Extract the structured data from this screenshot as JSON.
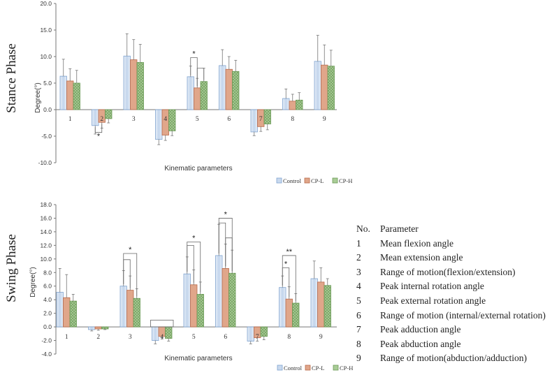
{
  "colors": {
    "control": "#c9d9ee",
    "control_stroke": "#7fa3cf",
    "cpl": "#e0a68a",
    "cpl_stroke": "#b9694a",
    "cph": "#a9cc97",
    "cph_stroke": "#6a9a55"
  },
  "chart_data": [
    {
      "type": "bar",
      "title": "Stance Phase",
      "xlabel": "Kinematic parameters",
      "ylabel": "Degree(°)",
      "ylim": [
        -10,
        20
      ],
      "yticks": [
        "-10.0",
        "-5.0",
        "0.0",
        "5.0",
        "10.0",
        "15.0",
        "20.0"
      ],
      "categories": [
        "1",
        "2",
        "3",
        "4",
        "5",
        "6",
        "7",
        "8",
        "9"
      ],
      "series": [
        {
          "name": "Control",
          "values": [
            6.3,
            -3.0,
            10.1,
            -5.6,
            6.2,
            8.3,
            -4.2,
            2.1,
            9.1
          ],
          "errors": [
            3.2,
            1.6,
            4.2,
            1.0,
            2.0,
            3.0,
            0.7,
            1.8,
            4.9
          ]
        },
        {
          "name": "CP-L",
          "values": [
            5.4,
            -2.4,
            9.4,
            -4.8,
            4.1,
            7.6,
            -3.2,
            1.6,
            8.4
          ],
          "errors": [
            2.3,
            1.1,
            3.8,
            1.0,
            1.8,
            2.4,
            0.9,
            1.3,
            3.8
          ]
        },
        {
          "name": "CP-H",
          "values": [
            5.0,
            -1.7,
            8.9,
            -4.0,
            5.3,
            7.2,
            -2.7,
            1.8,
            8.2
          ],
          "errors": [
            2.4,
            0.8,
            3.4,
            0.9,
            2.5,
            2.1,
            1.1,
            1.4,
            3.0
          ]
        }
      ],
      "annotations": [
        "*",
        "*"
      ],
      "legend": "bottom-right"
    },
    {
      "type": "bar",
      "title": "Swing Phase",
      "xlabel": "Kinematic parameters",
      "ylabel": "Degree(°)",
      "ylim": [
        -4,
        18
      ],
      "yticks": [
        "-4.0",
        "-2.0",
        "0.0",
        "2.0",
        "4.0",
        "6.0",
        "8.0",
        "10.0",
        "12.0",
        "14.0",
        "16.0",
        "18.0"
      ],
      "categories": [
        "1",
        "2",
        "3",
        "4",
        "5",
        "6",
        "7",
        "8",
        "9"
      ],
      "series": [
        {
          "name": "Control",
          "values": [
            5.1,
            -0.4,
            6.0,
            -2.0,
            7.8,
            10.5,
            -2.1,
            5.8,
            7.1
          ],
          "errors": [
            3.5,
            0.2,
            2.3,
            0.5,
            2.5,
            4.6,
            0.4,
            1.7,
            2.6
          ]
        },
        {
          "name": "CP-L",
          "values": [
            4.3,
            -0.3,
            5.4,
            -1.4,
            6.2,
            8.6,
            -1.6,
            4.1,
            6.6
          ],
          "errors": [
            3.4,
            0.2,
            2.1,
            0.4,
            2.2,
            3.6,
            0.5,
            1.8,
            2.1
          ]
        },
        {
          "name": "CP-H",
          "values": [
            3.8,
            -0.3,
            4.2,
            -1.7,
            4.8,
            7.9,
            -1.4,
            3.5,
            6.1
          ],
          "errors": [
            1.0,
            0.1,
            1.4,
            0.4,
            1.8,
            3.4,
            0.5,
            1.4,
            1.0
          ]
        }
      ],
      "annotations": [
        "*",
        "*",
        "*",
        "*",
        "**"
      ],
      "legend": "bottom-right"
    }
  ],
  "parameters": {
    "header_no": "No.",
    "header_name": "Parameter",
    "items": [
      {
        "no": "1",
        "name": "Mean flexion angle"
      },
      {
        "no": "2",
        "name": "Mean extension angle"
      },
      {
        "no": "3",
        "name": "Range of motion(flexion/extension)"
      },
      {
        "no": "4",
        "name": "Peak internal rotation angle"
      },
      {
        "no": "5",
        "name": "Peak external rotation angle"
      },
      {
        "no": "6",
        "name": "Range of motion (internal/external rotation)"
      },
      {
        "no": "7",
        "name": "Peak adduction angle"
      },
      {
        "no": "8",
        "name": "Peak abduction angle"
      },
      {
        "no": "9",
        "name": "Range of motion(abduction/adduction)"
      }
    ]
  }
}
